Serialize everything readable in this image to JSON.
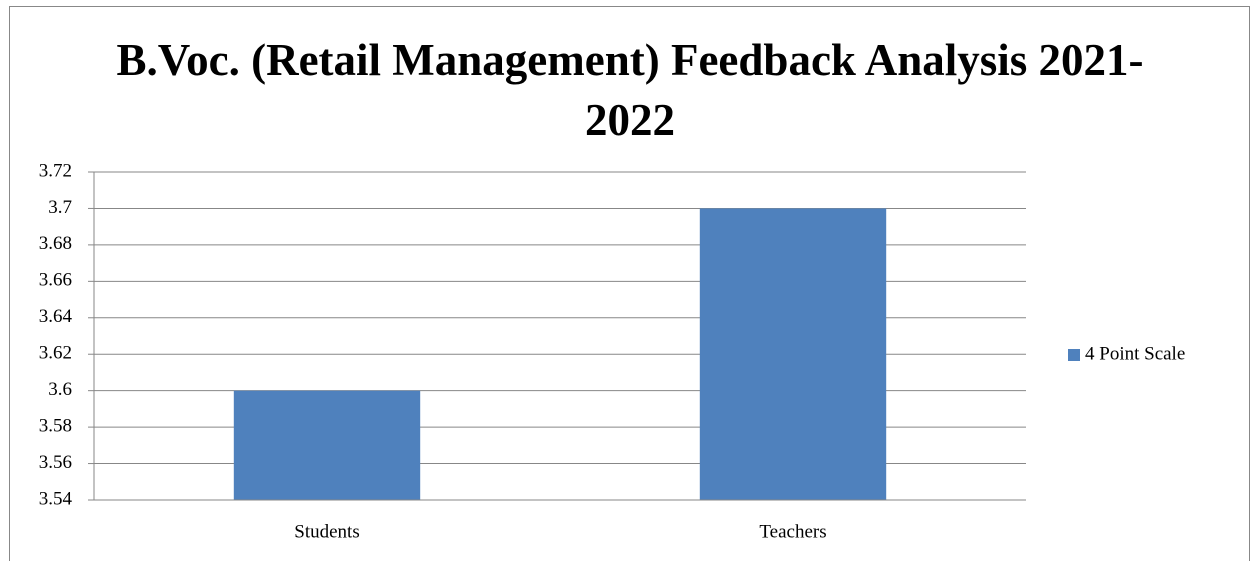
{
  "chart_data": {
    "type": "bar",
    "title": "B.Voc. (Retail Management) Feedback Analysis 2021-2022",
    "categories": [
      "Students",
      "Teachers"
    ],
    "series": [
      {
        "name": "4 Point Scale",
        "color": "#4f81bd",
        "values": [
          3.6,
          3.7
        ]
      }
    ],
    "ylim": [
      3.54,
      3.72
    ],
    "yticks": [
      3.54,
      3.56,
      3.58,
      3.6,
      3.62,
      3.64,
      3.66,
      3.68,
      3.7,
      3.72
    ],
    "grid": true,
    "legend": "right"
  }
}
